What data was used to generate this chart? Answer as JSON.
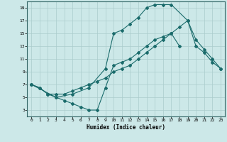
{
  "xlabel": "Humidex (Indice chaleur)",
  "bg_color": "#cce8e8",
  "grid_color": "#aacccc",
  "line_color": "#1a6b6b",
  "xlim": [
    -0.5,
    23.5
  ],
  "ylim": [
    2,
    20
  ],
  "xticks": [
    0,
    1,
    2,
    3,
    4,
    5,
    6,
    7,
    8,
    9,
    10,
    11,
    12,
    13,
    14,
    15,
    16,
    17,
    18,
    19,
    20,
    21,
    22,
    23
  ],
  "yticks": [
    3,
    5,
    7,
    9,
    11,
    13,
    15,
    17,
    19
  ],
  "line1_x": [
    0,
    1,
    2,
    3,
    4,
    5,
    6,
    7,
    8,
    9,
    10,
    11,
    12,
    13,
    14,
    15,
    16,
    17,
    18
  ],
  "line1_y": [
    7,
    6.5,
    5.5,
    5.0,
    4.5,
    4.0,
    3.5,
    3.0,
    3.0,
    6.5,
    10.0,
    10.5,
    11.0,
    12.0,
    13.0,
    14.0,
    14.5,
    15.0,
    13.0
  ],
  "line2_x": [
    0,
    1,
    2,
    3,
    4,
    5,
    6,
    7,
    8,
    9,
    10,
    11,
    12,
    13,
    14,
    15,
    16,
    17,
    18,
    19,
    20,
    21,
    22,
    23
  ],
  "line2_y": [
    7,
    6.5,
    5.5,
    5.5,
    5.5,
    6.0,
    6.5,
    7.0,
    7.5,
    8.0,
    9.0,
    9.5,
    10.0,
    11.0,
    12.0,
    13.0,
    14.0,
    15.0,
    16.0,
    17.0,
    13.0,
    12.0,
    10.5,
    9.5
  ],
  "line3_x": [
    0,
    3,
    5,
    7,
    9,
    10,
    11,
    12,
    13,
    14,
    15,
    16,
    17,
    19,
    20,
    21,
    22,
    23
  ],
  "line3_y": [
    7,
    5.0,
    5.5,
    6.5,
    9.5,
    15.0,
    15.5,
    16.5,
    17.5,
    19.0,
    19.5,
    19.5,
    19.5,
    17.0,
    14.0,
    12.5,
    11.0,
    9.5
  ]
}
